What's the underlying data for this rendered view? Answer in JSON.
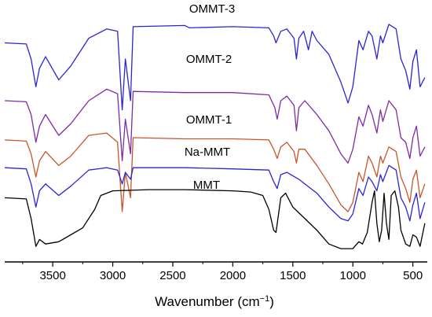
{
  "chart_data": {
    "type": "line",
    "title": "",
    "xlabel": "Wavenumber",
    "xlabel_unit": "cm",
    "xlabel_unit_sup": "−1",
    "ylabel": "",
    "xlim": [
      3900,
      380
    ],
    "x_reversed": true,
    "y_axis_visible": false,
    "grid": false,
    "legend": "none (labels placed above each curve)",
    "x_ticks": [
      3500,
      3000,
      2500,
      2000,
      1500,
      1000,
      500
    ],
    "series": [
      {
        "name": "OMMT-3",
        "color": "#2b24d6",
        "points": [
          [
            3900,
            0.91
          ],
          [
            3720,
            0.905
          ],
          [
            3680,
            0.84
          ],
          [
            3640,
            0.72
          ],
          [
            3610,
            0.8
          ],
          [
            3560,
            0.85
          ],
          [
            3450,
            0.75
          ],
          [
            3350,
            0.81
          ],
          [
            3200,
            0.93
          ],
          [
            3050,
            0.97
          ],
          [
            2960,
            0.96
          ],
          [
            2921,
            0.62
          ],
          [
            2895,
            0.84
          ],
          [
            2852,
            0.66
          ],
          [
            2830,
            0.98
          ],
          [
            2400,
            0.985
          ],
          [
            2360,
            0.975
          ],
          [
            2000,
            0.98
          ],
          [
            1700,
            0.975
          ],
          [
            1660,
            0.94
          ],
          [
            1640,
            0.91
          ],
          [
            1600,
            0.96
          ],
          [
            1550,
            0.97
          ],
          [
            1490,
            0.93
          ],
          [
            1470,
            0.84
          ],
          [
            1450,
            0.93
          ],
          [
            1410,
            0.96
          ],
          [
            1370,
            0.88
          ],
          [
            1340,
            0.96
          ],
          [
            1300,
            0.92
          ],
          [
            1200,
            0.86
          ],
          [
            1100,
            0.74
          ],
          [
            1040,
            0.65
          ],
          [
            1000,
            0.72
          ],
          [
            950,
            0.92
          ],
          [
            915,
            0.88
          ],
          [
            870,
            0.96
          ],
          [
            840,
            0.94
          ],
          [
            800,
            0.84
          ],
          [
            770,
            0.94
          ],
          [
            750,
            0.91
          ],
          [
            700,
            0.99
          ],
          [
            640,
            0.97
          ],
          [
            600,
            0.84
          ],
          [
            560,
            0.79
          ],
          [
            525,
            0.71
          ],
          [
            500,
            0.83
          ],
          [
            470,
            0.88
          ],
          [
            440,
            0.72
          ],
          [
            400,
            0.76
          ]
        ]
      },
      {
        "name": "OMMT-2",
        "color": "#7f2aa6",
        "points": [
          [
            3900,
            0.66
          ],
          [
            3720,
            0.655
          ],
          [
            3680,
            0.6
          ],
          [
            3640,
            0.48
          ],
          [
            3610,
            0.55
          ],
          [
            3560,
            0.6
          ],
          [
            3450,
            0.51
          ],
          [
            3350,
            0.56
          ],
          [
            3200,
            0.66
          ],
          [
            3050,
            0.71
          ],
          [
            2960,
            0.69
          ],
          [
            2921,
            0.4
          ],
          [
            2895,
            0.58
          ],
          [
            2852,
            0.43
          ],
          [
            2830,
            0.7
          ],
          [
            2400,
            0.695
          ],
          [
            2000,
            0.695
          ],
          [
            1700,
            0.685
          ],
          [
            1650,
            0.63
          ],
          [
            1630,
            0.58
          ],
          [
            1600,
            0.66
          ],
          [
            1550,
            0.68
          ],
          [
            1490,
            0.64
          ],
          [
            1470,
            0.53
          ],
          [
            1450,
            0.63
          ],
          [
            1400,
            0.66
          ],
          [
            1300,
            0.6
          ],
          [
            1200,
            0.53
          ],
          [
            1100,
            0.43
          ],
          [
            1040,
            0.39
          ],
          [
            1000,
            0.45
          ],
          [
            950,
            0.59
          ],
          [
            915,
            0.55
          ],
          [
            870,
            0.64
          ],
          [
            840,
            0.6
          ],
          [
            800,
            0.52
          ],
          [
            770,
            0.62
          ],
          [
            750,
            0.57
          ],
          [
            700,
            0.66
          ],
          [
            640,
            0.62
          ],
          [
            600,
            0.5
          ],
          [
            560,
            0.48
          ],
          [
            525,
            0.41
          ],
          [
            500,
            0.5
          ],
          [
            470,
            0.55
          ],
          [
            440,
            0.42
          ],
          [
            400,
            0.46
          ]
        ]
      },
      {
        "name": "OMMT-1",
        "color": "#c8552a",
        "points": [
          [
            3900,
            0.49
          ],
          [
            3720,
            0.485
          ],
          [
            3680,
            0.43
          ],
          [
            3640,
            0.33
          ],
          [
            3610,
            0.4
          ],
          [
            3560,
            0.44
          ],
          [
            3450,
            0.38
          ],
          [
            3350,
            0.42
          ],
          [
            3200,
            0.51
          ],
          [
            3050,
            0.52
          ],
          [
            2960,
            0.48
          ],
          [
            2921,
            0.18
          ],
          [
            2895,
            0.35
          ],
          [
            2852,
            0.24
          ],
          [
            2830,
            0.5
          ],
          [
            2400,
            0.495
          ],
          [
            2000,
            0.495
          ],
          [
            1700,
            0.49
          ],
          [
            1660,
            0.45
          ],
          [
            1630,
            0.41
          ],
          [
            1600,
            0.46
          ],
          [
            1550,
            0.48
          ],
          [
            1490,
            0.44
          ],
          [
            1470,
            0.39
          ],
          [
            1450,
            0.45
          ],
          [
            1400,
            0.45
          ],
          [
            1300,
            0.38
          ],
          [
            1200,
            0.3
          ],
          [
            1100,
            0.21
          ],
          [
            1040,
            0.18
          ],
          [
            1000,
            0.22
          ],
          [
            950,
            0.35
          ],
          [
            915,
            0.31
          ],
          [
            870,
            0.42
          ],
          [
            840,
            0.39
          ],
          [
            800,
            0.33
          ],
          [
            770,
            0.42
          ],
          [
            750,
            0.39
          ],
          [
            700,
            0.46
          ],
          [
            640,
            0.44
          ],
          [
            600,
            0.33
          ],
          [
            560,
            0.28
          ],
          [
            525,
            0.22
          ],
          [
            500,
            0.32
          ],
          [
            470,
            0.36
          ],
          [
            440,
            0.24
          ],
          [
            400,
            0.3
          ]
        ]
      },
      {
        "name": "Na-MMT",
        "color": "#2b24d6",
        "points": [
          [
            3900,
            0.37
          ],
          [
            3720,
            0.365
          ],
          [
            3680,
            0.3
          ],
          [
            3640,
            0.2
          ],
          [
            3610,
            0.27
          ],
          [
            3560,
            0.3
          ],
          [
            3450,
            0.25
          ],
          [
            3350,
            0.29
          ],
          [
            3200,
            0.36
          ],
          [
            3050,
            0.37
          ],
          [
            2960,
            0.36
          ],
          [
            2921,
            0.3
          ],
          [
            2895,
            0.35
          ],
          [
            2852,
            0.32
          ],
          [
            2830,
            0.37
          ],
          [
            2400,
            0.37
          ],
          [
            2000,
            0.365
          ],
          [
            1700,
            0.36
          ],
          [
            1660,
            0.31
          ],
          [
            1630,
            0.28
          ],
          [
            1600,
            0.34
          ],
          [
            1550,
            0.35
          ],
          [
            1450,
            0.32
          ],
          [
            1300,
            0.26
          ],
          [
            1200,
            0.2
          ],
          [
            1100,
            0.15
          ],
          [
            1040,
            0.14
          ],
          [
            1000,
            0.17
          ],
          [
            950,
            0.28
          ],
          [
            915,
            0.25
          ],
          [
            870,
            0.33
          ],
          [
            840,
            0.31
          ],
          [
            800,
            0.27
          ],
          [
            770,
            0.34
          ],
          [
            750,
            0.31
          ],
          [
            700,
            0.38
          ],
          [
            640,
            0.36
          ],
          [
            600,
            0.24
          ],
          [
            560,
            0.2
          ],
          [
            525,
            0.14
          ],
          [
            500,
            0.21
          ],
          [
            470,
            0.26
          ],
          [
            440,
            0.15
          ],
          [
            400,
            0.22
          ]
        ]
      },
      {
        "name": "MMT",
        "color": "#000000",
        "points": [
          [
            3900,
            0.24
          ],
          [
            3720,
            0.235
          ],
          [
            3680,
            0.15
          ],
          [
            3640,
            0.03
          ],
          [
            3610,
            0.06
          ],
          [
            3560,
            0.04
          ],
          [
            3450,
            0.05
          ],
          [
            3350,
            0.08
          ],
          [
            3250,
            0.11
          ],
          [
            3150,
            0.19
          ],
          [
            3100,
            0.25
          ],
          [
            3000,
            0.27
          ],
          [
            2700,
            0.275
          ],
          [
            2400,
            0.275
          ],
          [
            2000,
            0.27
          ],
          [
            1850,
            0.265
          ],
          [
            1750,
            0.25
          ],
          [
            1700,
            0.19
          ],
          [
            1660,
            0.1
          ],
          [
            1640,
            0.09
          ],
          [
            1600,
            0.24
          ],
          [
            1560,
            0.26
          ],
          [
            1500,
            0.2
          ],
          [
            1400,
            0.15
          ],
          [
            1300,
            0.1
          ],
          [
            1200,
            0.04
          ],
          [
            1100,
            0.02
          ],
          [
            1000,
            0.02
          ],
          [
            950,
            0.05
          ],
          [
            920,
            0.04
          ],
          [
            880,
            0.09
          ],
          [
            840,
            0.22
          ],
          [
            820,
            0.27
          ],
          [
            800,
            0.13
          ],
          [
            780,
            0.05
          ],
          [
            760,
            0.1
          ],
          [
            740,
            0.26
          ],
          [
            720,
            0.13
          ],
          [
            700,
            0.06
          ],
          [
            680,
            0.25
          ],
          [
            650,
            0.27
          ],
          [
            620,
            0.2
          ],
          [
            600,
            0.1
          ],
          [
            560,
            0.04
          ],
          [
            525,
            0.03
          ],
          [
            500,
            0.08
          ],
          [
            470,
            0.07
          ],
          [
            440,
            0.03
          ],
          [
            400,
            0.13
          ]
        ]
      }
    ],
    "series_label_positions_x": [
      2450,
      2450,
      2450,
      2450,
      2450
    ]
  }
}
